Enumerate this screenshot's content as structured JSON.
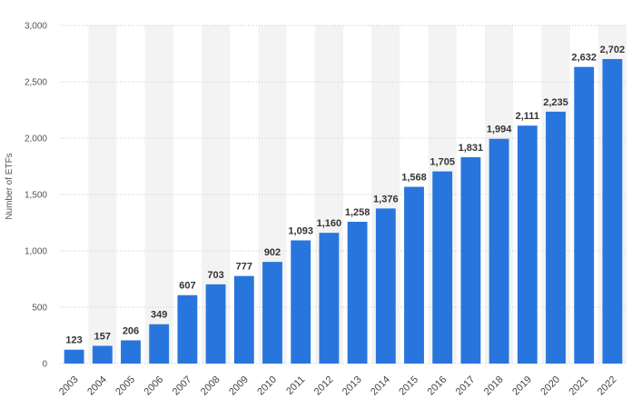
{
  "chart_data": {
    "type": "bar",
    "title": "",
    "xlabel": "",
    "ylabel": "Number of ETFs",
    "ylim": [
      0,
      3000
    ],
    "yticks": [
      0,
      500,
      1000,
      1500,
      2000,
      2500,
      3000
    ],
    "ytick_labels": [
      "0",
      "500",
      "1,000",
      "1,500",
      "2,000",
      "2,500",
      "3,000"
    ],
    "grid": true,
    "categories": [
      "2003",
      "2004",
      "2005",
      "2006",
      "2007",
      "2008",
      "2009",
      "2010",
      "2011",
      "2012",
      "2013",
      "2014",
      "2015",
      "2016",
      "2017",
      "2018",
      "2019",
      "2020",
      "2021",
      "2022"
    ],
    "values": [
      123,
      157,
      206,
      349,
      607,
      703,
      777,
      902,
      1093,
      1160,
      1258,
      1376,
      1568,
      1705,
      1831,
      1994,
      2111,
      2235,
      2632,
      2702
    ],
    "value_labels": [
      "123",
      "157",
      "206",
      "349",
      "607",
      "703",
      "777",
      "902",
      "1,093",
      "1,160",
      "1,258",
      "1,376",
      "1,568",
      "1,705",
      "1,831",
      "1,994",
      "2,111",
      "2,235",
      "2,632",
      "2,702"
    ],
    "colors": {
      "bar": "#2876dd",
      "band": "#f3f3f3"
    }
  }
}
